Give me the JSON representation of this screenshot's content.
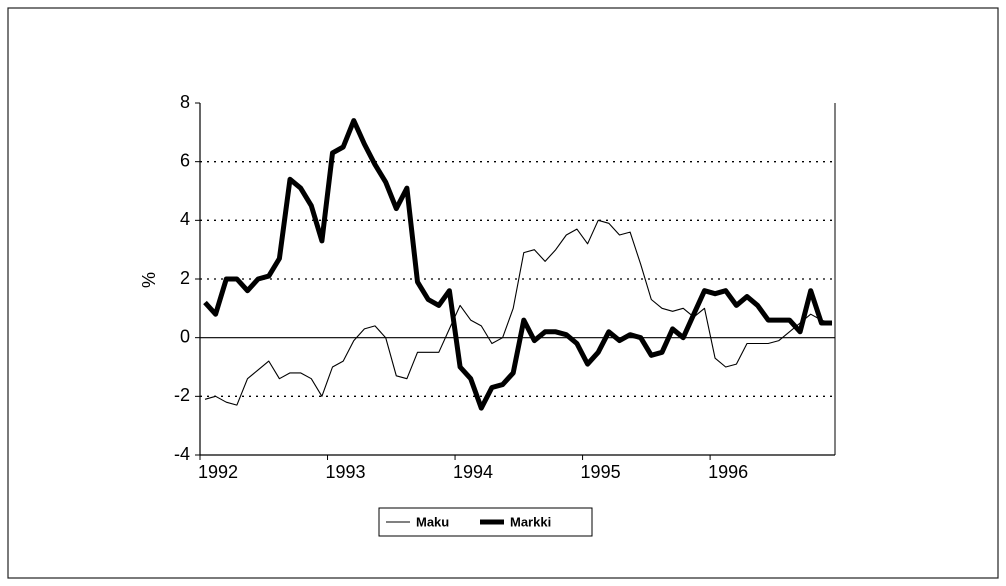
{
  "chart_data": {
    "type": "line",
    "y_label": "%",
    "categories": [
      "1992",
      null,
      null,
      null,
      null,
      null,
      null,
      null,
      null,
      null,
      null,
      null,
      "1993",
      null,
      null,
      null,
      null,
      null,
      null,
      null,
      null,
      null,
      null,
      null,
      "1994",
      null,
      null,
      null,
      null,
      null,
      null,
      null,
      null,
      null,
      null,
      null,
      "1995",
      null,
      null,
      null,
      null,
      null,
      null,
      null,
      null,
      null,
      null,
      null,
      "1996",
      null,
      null,
      null,
      null,
      null,
      null,
      null,
      null,
      null,
      null,
      null
    ],
    "series": [
      {
        "name": "Maku",
        "color": "#000000",
        "values": [
          -2.1,
          -2.0,
          -2.2,
          -2.3,
          -1.4,
          -1.1,
          -0.8,
          -1.4,
          -1.2,
          -1.2,
          -1.4,
          -2.0,
          -1.0,
          -0.8,
          -0.1,
          0.3,
          0.4,
          0.0,
          -1.3,
          -1.4,
          -0.5,
          -0.5,
          -0.5,
          0.3,
          1.1,
          0.6,
          0.4,
          -0.2,
          0.0,
          1.0,
          2.9,
          3.0,
          2.6,
          3.0,
          3.5,
          3.7,
          3.2,
          4.0,
          3.9,
          3.5,
          3.6,
          2.5,
          1.3,
          1.0,
          0.9,
          1.0,
          0.7,
          1.0,
          -0.7,
          -1.0,
          -0.9,
          -0.2,
          -0.2,
          -0.2,
          -0.1,
          0.2,
          0.5,
          0.8,
          0.6,
          0.5
        ]
      },
      {
        "name": "Markki",
        "color": "#000000",
        "values": [
          1.2,
          0.8,
          2.0,
          2.0,
          1.6,
          2.0,
          2.1,
          2.7,
          5.4,
          5.1,
          4.5,
          3.3,
          6.3,
          6.5,
          7.4,
          6.6,
          5.9,
          5.3,
          4.4,
          5.1,
          1.9,
          1.3,
          1.1,
          1.6,
          -1.0,
          -1.4,
          -2.4,
          -1.7,
          -1.6,
          -1.2,
          0.6,
          -0.1,
          0.2,
          0.2,
          0.1,
          -0.2,
          -0.9,
          -0.5,
          0.2,
          -0.1,
          0.1,
          0.0,
          -0.6,
          -0.5,
          0.3,
          0.0,
          0.8,
          1.6,
          1.5,
          1.6,
          1.1,
          1.4,
          1.1,
          0.6,
          0.6,
          0.6,
          0.2,
          1.6,
          0.5,
          0.5
        ]
      }
    ],
    "ylim": [
      -4,
      8
    ],
    "yticks": [
      -4,
      -2,
      0,
      2,
      4,
      6,
      8
    ],
    "grid": true
  }
}
